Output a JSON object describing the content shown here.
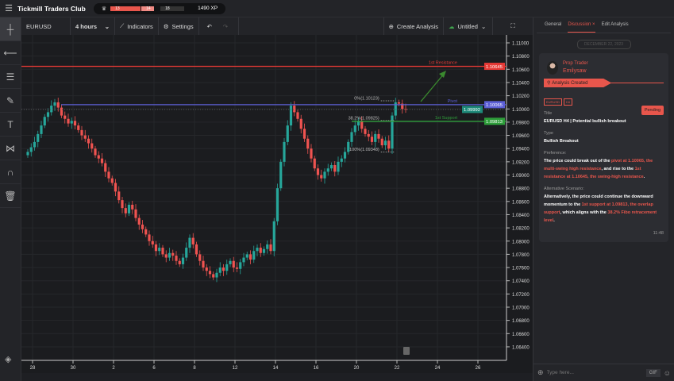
{
  "topbar": {
    "title": "Tickmill Traders Club",
    "xp_segments": [
      "13",
      "14",
      "18"
    ],
    "xp": "1490 XP"
  },
  "toolbar": {
    "symbol": "EURUSD",
    "interval": "4 hours",
    "indicators": "Indicators",
    "settings": "Settings",
    "create": "Create Analysis",
    "layout": "Untitled"
  },
  "tools": [
    "crosshair-icon",
    "line-icon",
    "fib-icon",
    "brush-icon",
    "text-icon",
    "pattern-icon",
    "magnet-icon",
    "trash-icon"
  ],
  "panel": {
    "tabs": [
      "General",
      "Discussion",
      "Edit Analysis"
    ],
    "active_tab": "Discussion",
    "date": "DECEMBER 22, 2023",
    "role": "Prop Trader",
    "user": "Emilysaw",
    "banner": "Analysis Created",
    "tags": [
      "EURUSD",
      "H4"
    ],
    "status": "Pending",
    "title_label": "Title",
    "title": "EURUSD H4 | Potential bullish breakout",
    "type_label": "Type",
    "type": "Bullish Breakout",
    "pref_label": "Preference:",
    "pref": [
      "The price could break out of the ",
      "pivot at 1.10065, the multi-swing high resistance",
      ", and rise to the ",
      "1st resistance at 1.10645, the swing-high resistance",
      "."
    ],
    "alt_label": "Alternative Scenario:",
    "alt": [
      "Alternatively, the price could continue the downward momentum to the ",
      "1st support at 1.09813, the overlap support",
      ", which aligns with the ",
      "38.2% Fibo retracement level",
      "."
    ],
    "time": "11:48",
    "placeholder": "Type here...",
    "gif": "GIF"
  },
  "colors": {
    "accent": "#e8564c",
    "up": "#26a69a",
    "down": "#ef5350",
    "resistance": "#e53935",
    "pivot": "#5c5fd6",
    "support": "#2e9e3a"
  },
  "chart_data": {
    "type": "candlestick",
    "symbol": "EURUSD",
    "interval": "4 hours",
    "ylim": [
      1.064,
      1.11
    ],
    "yticks": [
      "1.11000",
      "1.10800",
      "1.10600",
      "1.10400",
      "1.10200",
      "1.10000",
      "1.09800",
      "1.09600",
      "1.09400",
      "1.09200",
      "1.09000",
      "1.08800",
      "1.08600",
      "1.08400",
      "1.08200",
      "1.08000",
      "1.07800",
      "1.07600",
      "1.07400",
      "1.07200",
      "1.07000",
      "1.06800",
      "1.06600",
      "1.06400"
    ],
    "xticks": [
      "28",
      "30",
      "2",
      "6",
      "8",
      "12",
      "14",
      "16",
      "20",
      "22",
      "24",
      "26"
    ],
    "first_open": 1.093,
    "closes": [
      1.0935,
      1.0942,
      1.095,
      1.0962,
      1.0975,
      1.0988,
      1.0995,
      1.1005,
      1.101,
      1.1002,
      1.099,
      1.0985,
      1.0978,
      1.0982,
      1.0975,
      1.0968,
      1.096,
      1.0955,
      1.0948,
      1.094,
      1.093,
      1.0925,
      1.0918,
      1.0905,
      1.0895,
      1.0888,
      1.0875,
      1.0862,
      1.085,
      1.0842,
      1.0855,
      1.0848,
      1.0835,
      1.0825,
      1.0818,
      1.081,
      1.08,
      1.0795,
      1.0785,
      1.079,
      1.078,
      1.0775,
      1.0782,
      1.0778,
      1.077,
      1.0765,
      1.0775,
      1.079,
      1.0805,
      1.0795,
      1.078,
      1.077,
      1.076,
      1.0755,
      1.075,
      1.0745,
      1.0752,
      1.076,
      1.0755,
      1.0765,
      1.077,
      1.076,
      1.0758,
      1.0768,
      1.0775,
      1.078,
      1.0772,
      1.0785,
      1.079,
      1.0782,
      1.0788,
      1.0795,
      1.0785,
      1.083,
      1.088,
      1.092,
      1.095,
      1.0975,
      1.1005,
      1.0995,
      1.0985,
      1.097,
      1.0955,
      1.094,
      1.0925,
      1.091,
      1.09,
      1.0895,
      1.0905,
      1.091,
      1.0915,
      1.0905,
      1.092,
      1.0925,
      1.0935,
      1.095,
      1.0965,
      1.0975,
      1.0982,
      1.097,
      1.0962,
      1.0958,
      1.095,
      1.0962,
      1.0955,
      1.0945,
      1.0952,
      1.094,
      1.099,
      1.101,
      1.1008,
      1.1,
      1.09992
    ],
    "levels": [
      {
        "name": "1st Resistance",
        "price": 1.10645,
        "label": "1.10645",
        "color": "#e53935"
      },
      {
        "name": "Pivot",
        "price": 1.10065,
        "label": "1.10065",
        "color": "#5c5fd6"
      },
      {
        "name": "1st Support",
        "price": 1.09813,
        "label": "1.09813",
        "color": "#2e9e3a"
      }
    ],
    "last_price": {
      "price": 1.09992,
      "label": "1.09992"
    },
    "fib": [
      {
        "label": "0%(1.10123)",
        "price": 1.10123
      },
      {
        "label": "38.2%(1.09825)",
        "price": 1.09825
      },
      {
        "label": "100%(1.09348)",
        "price": 1.09348
      }
    ]
  }
}
